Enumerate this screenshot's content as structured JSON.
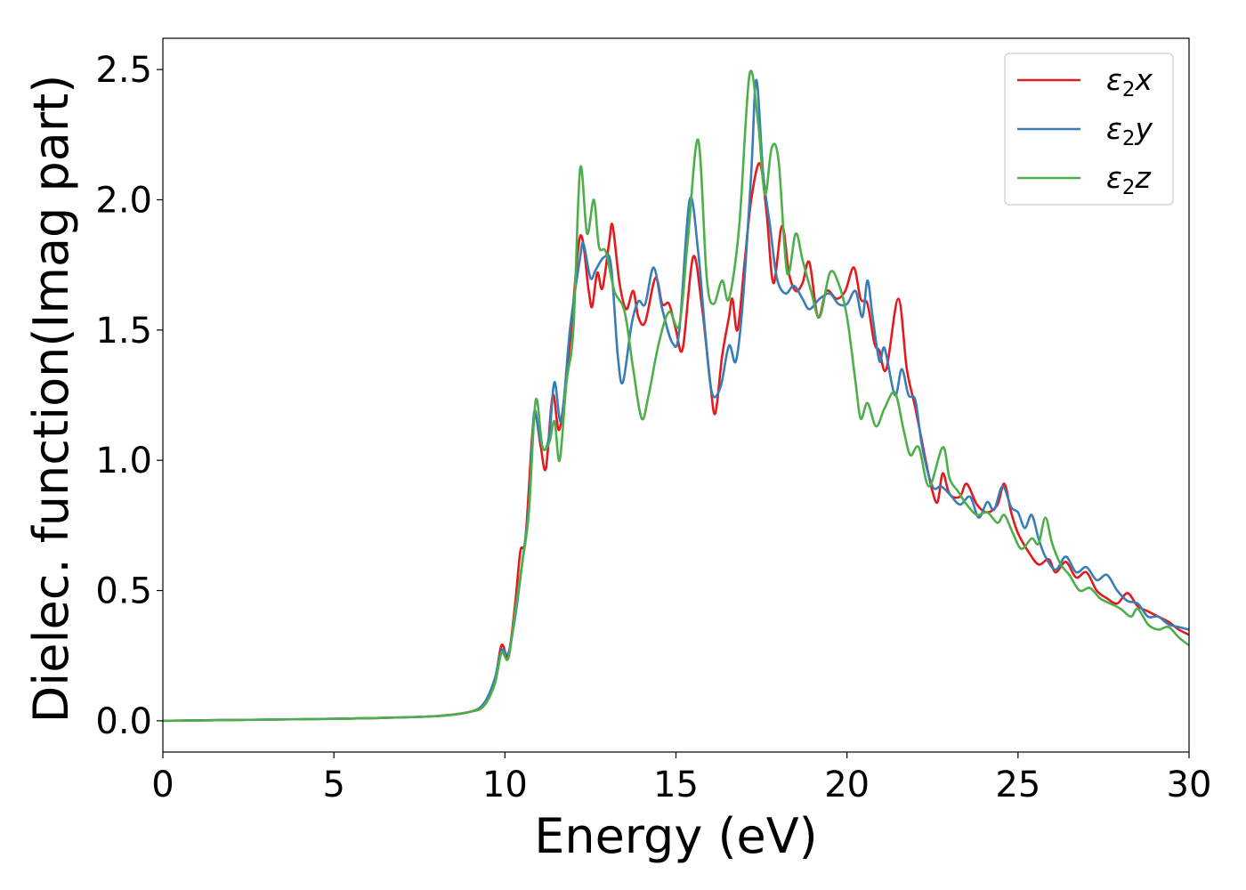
{
  "chart_data": {
    "type": "line",
    "xlabel": "Energy (eV)",
    "ylabel": "Dielec. function(Imag part)",
    "xlim": [
      0,
      30
    ],
    "ylim": [
      -0.12,
      2.62
    ],
    "xticks": [
      0,
      5,
      10,
      15,
      20,
      25,
      30
    ],
    "xtick_labels": [
      "0",
      "5",
      "10",
      "15",
      "20",
      "25",
      "30"
    ],
    "yticks": [
      0.0,
      0.5,
      1.0,
      1.5,
      2.0,
      2.5
    ],
    "ytick_labels": [
      "0.0",
      "0.5",
      "1.0",
      "1.5",
      "2.0",
      "2.5"
    ],
    "grid": false,
    "legend_position": "top-right",
    "series": [
      {
        "name": "ε2x",
        "legend": {
          "base": "ε",
          "sub": "2",
          "suffix": "x"
        },
        "color": "#e41a1c",
        "points": [
          [
            0,
            0
          ],
          [
            2,
            0.003
          ],
          [
            4,
            0.006
          ],
          [
            6,
            0.01
          ],
          [
            8,
            0.018
          ],
          [
            9,
            0.035
          ],
          [
            9.4,
            0.06
          ],
          [
            9.7,
            0.15
          ],
          [
            9.9,
            0.29
          ],
          [
            10.1,
            0.25
          ],
          [
            10.3,
            0.45
          ],
          [
            10.45,
            0.65
          ],
          [
            10.6,
            0.7
          ],
          [
            10.8,
            1.1
          ],
          [
            10.9,
            1.17
          ],
          [
            11.05,
            1.05
          ],
          [
            11.2,
            0.97
          ],
          [
            11.4,
            1.25
          ],
          [
            11.6,
            1.12
          ],
          [
            11.9,
            1.45
          ],
          [
            12.2,
            1.86
          ],
          [
            12.45,
            1.65
          ],
          [
            12.55,
            1.59
          ],
          [
            12.7,
            1.72
          ],
          [
            12.85,
            1.66
          ],
          [
            13.05,
            1.84
          ],
          [
            13.15,
            1.9
          ],
          [
            13.35,
            1.68
          ],
          [
            13.55,
            1.58
          ],
          [
            13.75,
            1.65
          ],
          [
            13.9,
            1.55
          ],
          [
            14.1,
            1.53
          ],
          [
            14.4,
            1.7
          ],
          [
            14.6,
            1.6
          ],
          [
            14.8,
            1.6
          ],
          [
            15.0,
            1.5
          ],
          [
            15.2,
            1.43
          ],
          [
            15.5,
            1.78
          ],
          [
            15.75,
            1.6
          ],
          [
            16.0,
            1.3
          ],
          [
            16.15,
            1.18
          ],
          [
            16.35,
            1.4
          ],
          [
            16.55,
            1.55
          ],
          [
            16.65,
            1.62
          ],
          [
            16.8,
            1.5
          ],
          [
            17.0,
            1.75
          ],
          [
            17.2,
            2.0
          ],
          [
            17.45,
            2.14
          ],
          [
            17.65,
            1.95
          ],
          [
            17.85,
            1.68
          ],
          [
            18.1,
            1.9
          ],
          [
            18.3,
            1.72
          ],
          [
            18.5,
            1.65
          ],
          [
            18.7,
            1.68
          ],
          [
            18.9,
            1.76
          ],
          [
            19.15,
            1.55
          ],
          [
            19.4,
            1.65
          ],
          [
            19.7,
            1.62
          ],
          [
            19.95,
            1.65
          ],
          [
            20.2,
            1.74
          ],
          [
            20.4,
            1.62
          ],
          [
            20.6,
            1.6
          ],
          [
            20.8,
            1.45
          ],
          [
            20.95,
            1.42
          ],
          [
            21.15,
            1.35
          ],
          [
            21.5,
            1.62
          ],
          [
            21.75,
            1.35
          ],
          [
            22.0,
            1.2
          ],
          [
            22.3,
            1.0
          ],
          [
            22.5,
            0.88
          ],
          [
            22.65,
            0.84
          ],
          [
            22.8,
            0.95
          ],
          [
            23.0,
            0.87
          ],
          [
            23.3,
            0.86
          ],
          [
            23.5,
            0.91
          ],
          [
            23.8,
            0.83
          ],
          [
            24.1,
            0.8
          ],
          [
            24.4,
            0.83
          ],
          [
            24.6,
            0.91
          ],
          [
            24.8,
            0.8
          ],
          [
            25.0,
            0.72
          ],
          [
            25.3,
            0.65
          ],
          [
            25.6,
            0.6
          ],
          [
            25.9,
            0.62
          ],
          [
            26.1,
            0.57
          ],
          [
            26.4,
            0.61
          ],
          [
            26.7,
            0.55
          ],
          [
            27.0,
            0.57
          ],
          [
            27.3,
            0.5
          ],
          [
            27.6,
            0.47
          ],
          [
            27.9,
            0.45
          ],
          [
            28.2,
            0.49
          ],
          [
            28.5,
            0.44
          ],
          [
            28.8,
            0.42
          ],
          [
            29.1,
            0.4
          ],
          [
            29.4,
            0.38
          ],
          [
            29.7,
            0.35
          ],
          [
            30,
            0.33
          ]
        ]
      },
      {
        "name": "ε2y",
        "legend": {
          "base": "ε",
          "sub": "2",
          "suffix": "y"
        },
        "color": "#377eb8",
        "points": [
          [
            0,
            0
          ],
          [
            2,
            0.003
          ],
          [
            4,
            0.006
          ],
          [
            6,
            0.01
          ],
          [
            8,
            0.018
          ],
          [
            9,
            0.035
          ],
          [
            9.4,
            0.07
          ],
          [
            9.7,
            0.16
          ],
          [
            9.9,
            0.27
          ],
          [
            10.1,
            0.26
          ],
          [
            10.3,
            0.4
          ],
          [
            10.5,
            0.6
          ],
          [
            10.7,
            0.82
          ],
          [
            10.85,
            1.18
          ],
          [
            11.0,
            1.1
          ],
          [
            11.15,
            1.04
          ],
          [
            11.3,
            1.1
          ],
          [
            11.45,
            1.3
          ],
          [
            11.65,
            1.15
          ],
          [
            11.9,
            1.5
          ],
          [
            12.2,
            1.78
          ],
          [
            12.3,
            1.83
          ],
          [
            12.5,
            1.7
          ],
          [
            12.65,
            1.73
          ],
          [
            12.9,
            1.78
          ],
          [
            13.1,
            1.75
          ],
          [
            13.3,
            1.4
          ],
          [
            13.45,
            1.3
          ],
          [
            13.7,
            1.52
          ],
          [
            13.9,
            1.61
          ],
          [
            14.1,
            1.6
          ],
          [
            14.35,
            1.74
          ],
          [
            14.6,
            1.58
          ],
          [
            14.9,
            1.45
          ],
          [
            15.1,
            1.5
          ],
          [
            15.4,
            2.0
          ],
          [
            15.65,
            1.8
          ],
          [
            15.85,
            1.5
          ],
          [
            16.05,
            1.26
          ],
          [
            16.3,
            1.28
          ],
          [
            16.55,
            1.44
          ],
          [
            16.75,
            1.38
          ],
          [
            16.95,
            1.6
          ],
          [
            17.2,
            2.1
          ],
          [
            17.35,
            2.46
          ],
          [
            17.55,
            2.1
          ],
          [
            17.75,
            1.9
          ],
          [
            17.95,
            1.7
          ],
          [
            18.2,
            1.64
          ],
          [
            18.45,
            1.67
          ],
          [
            18.7,
            1.62
          ],
          [
            18.9,
            1.58
          ],
          [
            19.2,
            1.62
          ],
          [
            19.5,
            1.64
          ],
          [
            19.75,
            1.6
          ],
          [
            20.0,
            1.6
          ],
          [
            20.25,
            1.65
          ],
          [
            20.45,
            1.55
          ],
          [
            20.6,
            1.69
          ],
          [
            20.75,
            1.55
          ],
          [
            20.95,
            1.38
          ],
          [
            21.1,
            1.43
          ],
          [
            21.4,
            1.25
          ],
          [
            21.6,
            1.35
          ],
          [
            21.8,
            1.25
          ],
          [
            22.0,
            1.23
          ],
          [
            22.2,
            1.05
          ],
          [
            22.5,
            0.9
          ],
          [
            22.75,
            0.9
          ],
          [
            23.0,
            0.87
          ],
          [
            23.3,
            0.83
          ],
          [
            23.6,
            0.86
          ],
          [
            23.85,
            0.78
          ],
          [
            24.1,
            0.84
          ],
          [
            24.3,
            0.81
          ],
          [
            24.55,
            0.9
          ],
          [
            24.8,
            0.82
          ],
          [
            25.0,
            0.8
          ],
          [
            25.2,
            0.74
          ],
          [
            25.4,
            0.79
          ],
          [
            25.6,
            0.7
          ],
          [
            25.8,
            0.63
          ],
          [
            26.1,
            0.58
          ],
          [
            26.4,
            0.63
          ],
          [
            26.7,
            0.57
          ],
          [
            27.0,
            0.59
          ],
          [
            27.3,
            0.54
          ],
          [
            27.6,
            0.56
          ],
          [
            27.9,
            0.5
          ],
          [
            28.2,
            0.46
          ],
          [
            28.5,
            0.45
          ],
          [
            28.8,
            0.4
          ],
          [
            29.1,
            0.4
          ],
          [
            29.4,
            0.37
          ],
          [
            29.7,
            0.36
          ],
          [
            30,
            0.35
          ]
        ]
      },
      {
        "name": "ε2z",
        "legend": {
          "base": "ε",
          "sub": "2",
          "suffix": "z"
        },
        "color": "#4daf4a",
        "points": [
          [
            0,
            0
          ],
          [
            2,
            0.003
          ],
          [
            4,
            0.006
          ],
          [
            6,
            0.01
          ],
          [
            8,
            0.018
          ],
          [
            9,
            0.035
          ],
          [
            9.4,
            0.06
          ],
          [
            9.7,
            0.14
          ],
          [
            9.9,
            0.26
          ],
          [
            10.1,
            0.24
          ],
          [
            10.3,
            0.42
          ],
          [
            10.5,
            0.6
          ],
          [
            10.7,
            0.8
          ],
          [
            10.9,
            1.23
          ],
          [
            11.1,
            1.05
          ],
          [
            11.3,
            1.07
          ],
          [
            11.45,
            1.15
          ],
          [
            11.6,
            1.0
          ],
          [
            11.8,
            1.3
          ],
          [
            12.0,
            1.5
          ],
          [
            12.2,
            2.12
          ],
          [
            12.4,
            1.87
          ],
          [
            12.6,
            2.0
          ],
          [
            12.75,
            1.82
          ],
          [
            12.95,
            1.8
          ],
          [
            13.2,
            1.65
          ],
          [
            13.5,
            1.57
          ],
          [
            13.75,
            1.35
          ],
          [
            14.0,
            1.16
          ],
          [
            14.2,
            1.25
          ],
          [
            14.5,
            1.45
          ],
          [
            14.8,
            1.57
          ],
          [
            15.1,
            1.52
          ],
          [
            15.35,
            1.85
          ],
          [
            15.65,
            2.23
          ],
          [
            15.9,
            1.7
          ],
          [
            16.1,
            1.6
          ],
          [
            16.35,
            1.69
          ],
          [
            16.55,
            1.62
          ],
          [
            16.85,
            1.9
          ],
          [
            17.15,
            2.48
          ],
          [
            17.4,
            2.3
          ],
          [
            17.6,
            2.02
          ],
          [
            17.8,
            2.2
          ],
          [
            18.0,
            2.15
          ],
          [
            18.25,
            1.72
          ],
          [
            18.5,
            1.87
          ],
          [
            18.7,
            1.77
          ],
          [
            18.95,
            1.65
          ],
          [
            19.2,
            1.55
          ],
          [
            19.5,
            1.72
          ],
          [
            19.75,
            1.68
          ],
          [
            20.0,
            1.55
          ],
          [
            20.25,
            1.3
          ],
          [
            20.4,
            1.16
          ],
          [
            20.6,
            1.22
          ],
          [
            20.85,
            1.13
          ],
          [
            21.1,
            1.2
          ],
          [
            21.4,
            1.26
          ],
          [
            21.65,
            1.12
          ],
          [
            21.85,
            1.02
          ],
          [
            22.1,
            1.05
          ],
          [
            22.4,
            0.9
          ],
          [
            22.8,
            1.05
          ],
          [
            23.0,
            0.93
          ],
          [
            23.25,
            0.88
          ],
          [
            23.5,
            0.83
          ],
          [
            23.8,
            0.79
          ],
          [
            24.1,
            0.8
          ],
          [
            24.4,
            0.76
          ],
          [
            24.6,
            0.79
          ],
          [
            24.85,
            0.72
          ],
          [
            25.1,
            0.66
          ],
          [
            25.4,
            0.7
          ],
          [
            25.6,
            0.68
          ],
          [
            25.8,
            0.78
          ],
          [
            26.0,
            0.68
          ],
          [
            26.25,
            0.6
          ],
          [
            26.5,
            0.56
          ],
          [
            26.8,
            0.5
          ],
          [
            27.1,
            0.51
          ],
          [
            27.4,
            0.47
          ],
          [
            27.7,
            0.45
          ],
          [
            28.0,
            0.43
          ],
          [
            28.3,
            0.4
          ],
          [
            28.5,
            0.43
          ],
          [
            28.8,
            0.37
          ],
          [
            29.1,
            0.35
          ],
          [
            29.4,
            0.36
          ],
          [
            29.7,
            0.32
          ],
          [
            30,
            0.29
          ]
        ]
      }
    ]
  }
}
